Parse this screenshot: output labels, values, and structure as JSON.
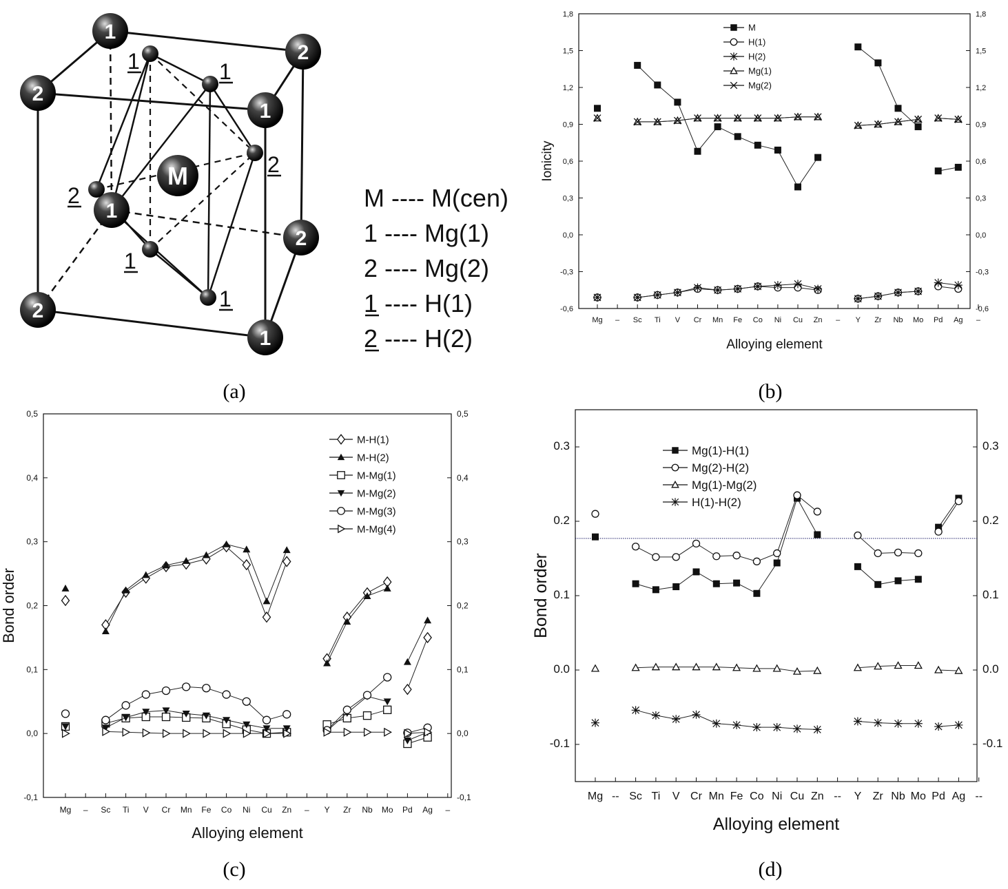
{
  "crystal": {
    "label": "(a)",
    "center_atom": "M",
    "legend": [
      {
        "key": "M",
        "value": "M(cen)",
        "underline": false
      },
      {
        "key": "1",
        "value": "Mg(1)",
        "underline": false
      },
      {
        "key": "2",
        "value": "Mg(2)",
        "underline": false
      },
      {
        "key": "1",
        "value": "H(1)",
        "underline": true
      },
      {
        "key": "2",
        "value": "H(2)",
        "underline": true
      }
    ],
    "separator": "----"
  },
  "chart_data": [
    {
      "id": "b",
      "label": "(b)",
      "type": "line",
      "title": "",
      "xlabel": "Alloying element",
      "ylabel": "Ionicity",
      "ylim": [
        -0.6,
        1.8
      ],
      "yticks": [
        "-0,6",
        "-0,3",
        "0,0",
        "0,3",
        "0,6",
        "0,9",
        "1,2",
        "1,5",
        "1,8"
      ],
      "categories": [
        "Mg",
        "–",
        "Sc",
        "Ti",
        "V",
        "Cr",
        "Mn",
        "Fe",
        "Co",
        "Ni",
        "Cu",
        "Zn",
        "–",
        "Y",
        "Zr",
        "Nb",
        "Mo",
        "Pd",
        "Ag",
        "–"
      ],
      "grid": false,
      "legend_position": "top-left",
      "series": [
        {
          "name": "M",
          "marker": "filled-square",
          "values": [
            1.03,
            null,
            1.38,
            1.22,
            1.08,
            0.68,
            0.88,
            0.8,
            0.73,
            0.69,
            0.39,
            0.63,
            null,
            1.53,
            1.4,
            1.03,
            0.88,
            0.52,
            0.55,
            null
          ],
          "segments": [
            [
              0,
              0
            ],
            [
              2,
              11
            ],
            [
              13,
              16
            ],
            [
              17,
              18
            ]
          ]
        },
        {
          "name": "H(1)",
          "marker": "open-circle",
          "values": [
            -0.51,
            null,
            -0.51,
            -0.49,
            -0.47,
            -0.44,
            -0.45,
            -0.44,
            -0.42,
            -0.43,
            -0.43,
            -0.45,
            null,
            -0.52,
            -0.5,
            -0.47,
            -0.46,
            -0.42,
            -0.44,
            null
          ],
          "segments": [
            [
              0,
              0
            ],
            [
              2,
              11
            ],
            [
              13,
              16
            ],
            [
              17,
              18
            ]
          ]
        },
        {
          "name": "H(2)",
          "marker": "asterisk",
          "values": [
            -0.51,
            null,
            -0.51,
            -0.49,
            -0.47,
            -0.43,
            -0.45,
            -0.44,
            -0.42,
            -0.41,
            -0.4,
            -0.44,
            null,
            -0.52,
            -0.5,
            -0.47,
            -0.46,
            -0.39,
            -0.41,
            null
          ],
          "segments": [
            [
              0,
              0
            ],
            [
              2,
              11
            ],
            [
              13,
              16
            ],
            [
              17,
              18
            ]
          ]
        },
        {
          "name": "Mg(1)",
          "marker": "open-triangle",
          "values": [
            0.95,
            null,
            0.92,
            0.92,
            0.93,
            0.95,
            0.95,
            0.95,
            0.95,
            0.95,
            0.96,
            0.96,
            null,
            0.89,
            0.9,
            0.92,
            0.94,
            0.95,
            0.94,
            null
          ],
          "segments": [
            [
              0,
              0
            ],
            [
              2,
              11
            ],
            [
              13,
              16
            ],
            [
              17,
              18
            ]
          ]
        },
        {
          "name": "Mg(2)",
          "marker": "x-cross",
          "values": [
            0.95,
            null,
            0.92,
            0.92,
            0.93,
            0.95,
            0.95,
            0.95,
            0.95,
            0.95,
            0.96,
            0.96,
            null,
            0.89,
            0.9,
            0.92,
            0.94,
            0.95,
            0.94,
            null
          ],
          "segments": [
            [
              0,
              0
            ],
            [
              2,
              11
            ],
            [
              13,
              16
            ],
            [
              17,
              18
            ]
          ]
        }
      ]
    },
    {
      "id": "c",
      "label": "(c)",
      "type": "line",
      "title": "",
      "xlabel": "Alloying element",
      "ylabel": "Bond order",
      "ylim": [
        -0.1,
        0.5
      ],
      "yticks": [
        "-0,1",
        "0,0",
        "0,1",
        "0,2",
        "0,3",
        "0,4",
        "0,5"
      ],
      "categories": [
        "Mg",
        "–",
        "Sc",
        "Ti",
        "V",
        "Cr",
        "Mn",
        "Fe",
        "Co",
        "Ni",
        "Cu",
        "Zn",
        "–",
        "Y",
        "Zr",
        "Nb",
        "Mo",
        "Pd",
        "Ag",
        "–"
      ],
      "grid": false,
      "legend_position": "top-right",
      "series": [
        {
          "name": "M-H(1)",
          "marker": "open-diamond",
          "values": [
            0.208,
            null,
            0.17,
            0.221,
            0.243,
            0.261,
            0.265,
            0.273,
            0.292,
            0.264,
            0.182,
            0.269,
            null,
            0.117,
            0.182,
            0.22,
            0.237,
            0.069,
            0.15,
            null
          ],
          "segments": [
            [
              0,
              0
            ],
            [
              2,
              11
            ],
            [
              13,
              16
            ],
            [
              17,
              18
            ]
          ]
        },
        {
          "name": "M-H(2)",
          "marker": "filled-triangle",
          "values": [
            0.227,
            null,
            0.16,
            0.224,
            0.248,
            0.263,
            0.27,
            0.279,
            0.296,
            0.288,
            0.207,
            0.287,
            null,
            0.11,
            0.175,
            0.215,
            0.227,
            0.112,
            0.177,
            null
          ],
          "segments": [
            [
              0,
              0
            ],
            [
              2,
              11
            ],
            [
              13,
              16
            ],
            [
              17,
              18
            ]
          ]
        },
        {
          "name": "M-Mg(1)",
          "marker": "open-square",
          "values": [
            0.011,
            null,
            0.016,
            0.024,
            0.026,
            0.026,
            0.025,
            0.024,
            0.015,
            0.006,
            0.0,
            0.002,
            null,
            0.014,
            0.024,
            0.028,
            0.037,
            -0.016,
            -0.006,
            null
          ],
          "segments": [
            [
              0,
              0
            ],
            [
              2,
              11
            ],
            [
              13,
              16
            ],
            [
              17,
              18
            ]
          ]
        },
        {
          "name": "M-Mg(2)",
          "marker": "filled-inverted-triangle",
          "values": [
            0.011,
            null,
            0.009,
            0.025,
            0.034,
            0.036,
            0.031,
            0.028,
            0.021,
            0.014,
            0.008,
            0.008,
            null,
            0.004,
            0.032,
            0.058,
            0.05,
            -0.011,
            0.002,
            null
          ],
          "segments": [
            [
              0,
              0
            ],
            [
              2,
              11
            ],
            [
              13,
              16
            ],
            [
              17,
              18
            ]
          ]
        },
        {
          "name": "M-Mg(3)",
          "marker": "open-circle",
          "values": [
            0.031,
            null,
            0.021,
            0.044,
            0.061,
            0.067,
            0.073,
            0.071,
            0.061,
            0.05,
            0.021,
            0.03,
            null,
            0.005,
            0.037,
            0.06,
            0.088,
            0.001,
            0.009,
            null
          ],
          "segments": [
            [
              0,
              0
            ],
            [
              2,
              11
            ],
            [
              13,
              16
            ],
            [
              17,
              18
            ]
          ]
        },
        {
          "name": "M-Mg(4)",
          "marker": "open-right-triangle",
          "values": [
            0.0,
            null,
            0.003,
            0.002,
            0.001,
            0.0,
            0.0,
            0.0,
            0.0,
            0.0,
            0.0,
            0.0,
            null,
            0.002,
            0.002,
            0.002,
            0.002,
            0.0,
            0.002,
            null
          ],
          "segments": [
            [
              0,
              0
            ],
            [
              2,
              11
            ],
            [
              13,
              16
            ],
            [
              17,
              18
            ]
          ]
        }
      ]
    },
    {
      "id": "d",
      "label": "(d)",
      "type": "line",
      "title": "",
      "xlabel": "Alloying element",
      "ylabel": "Bond order",
      "ylim": [
        -0.15,
        0.35
      ],
      "yticks": [
        "-0.1",
        "0.0",
        "0.1",
        "0.2",
        "0.3"
      ],
      "ytick_values": [
        -0.1,
        0.0,
        0.1,
        0.2,
        0.3
      ],
      "reference_line": 0.177,
      "categories": [
        "Mg",
        "--",
        "Sc",
        "Ti",
        "V",
        "Cr",
        "Mn",
        "Fe",
        "Co",
        "Ni",
        "Cu",
        "Zn",
        "--",
        "Y",
        "Zr",
        "Nb",
        "Mo",
        "Pd",
        "Ag",
        "--"
      ],
      "grid": false,
      "legend_position": "top-left",
      "series": [
        {
          "name": "Mg(1)-H(1)",
          "marker": "filled-square",
          "values": [
            0.179,
            null,
            0.116,
            0.108,
            0.112,
            0.132,
            0.116,
            0.117,
            0.103,
            0.144,
            0.231,
            0.182,
            null,
            0.139,
            0.115,
            0.12,
            0.122,
            0.192,
            0.231,
            null
          ],
          "segments": [
            [
              0,
              0
            ],
            [
              2,
              11
            ],
            [
              13,
              16
            ],
            [
              17,
              18
            ]
          ]
        },
        {
          "name": "Mg(2)-H(2)",
          "marker": "open-circle",
          "values": [
            0.21,
            null,
            0.166,
            0.152,
            0.152,
            0.17,
            0.153,
            0.154,
            0.146,
            0.157,
            0.235,
            0.213,
            null,
            0.181,
            0.157,
            0.158,
            0.157,
            0.186,
            0.227,
            null
          ],
          "segments": [
            [
              0,
              0
            ],
            [
              2,
              11
            ],
            [
              13,
              16
            ],
            [
              17,
              18
            ]
          ]
        },
        {
          "name": "Mg(1)-Mg(2)",
          "marker": "open-triangle",
          "values": [
            0.002,
            null,
            0.003,
            0.004,
            0.004,
            0.004,
            0.004,
            0.003,
            0.002,
            0.002,
            -0.002,
            -0.001,
            null,
            0.003,
            0.005,
            0.006,
            0.006,
            0.0,
            -0.001,
            null
          ],
          "segments": [
            [
              0,
              0
            ],
            [
              2,
              11
            ],
            [
              13,
              16
            ],
            [
              17,
              18
            ]
          ]
        },
        {
          "name": "H(1)-H(2)",
          "marker": "asterisk",
          "values": [
            -0.071,
            null,
            -0.054,
            -0.061,
            -0.066,
            -0.06,
            -0.072,
            -0.074,
            -0.077,
            -0.077,
            -0.079,
            -0.08,
            null,
            -0.069,
            -0.071,
            -0.072,
            -0.072,
            -0.076,
            -0.074,
            null
          ],
          "segments": [
            [
              0,
              0
            ],
            [
              2,
              11
            ],
            [
              13,
              16
            ],
            [
              17,
              18
            ]
          ]
        }
      ]
    }
  ]
}
